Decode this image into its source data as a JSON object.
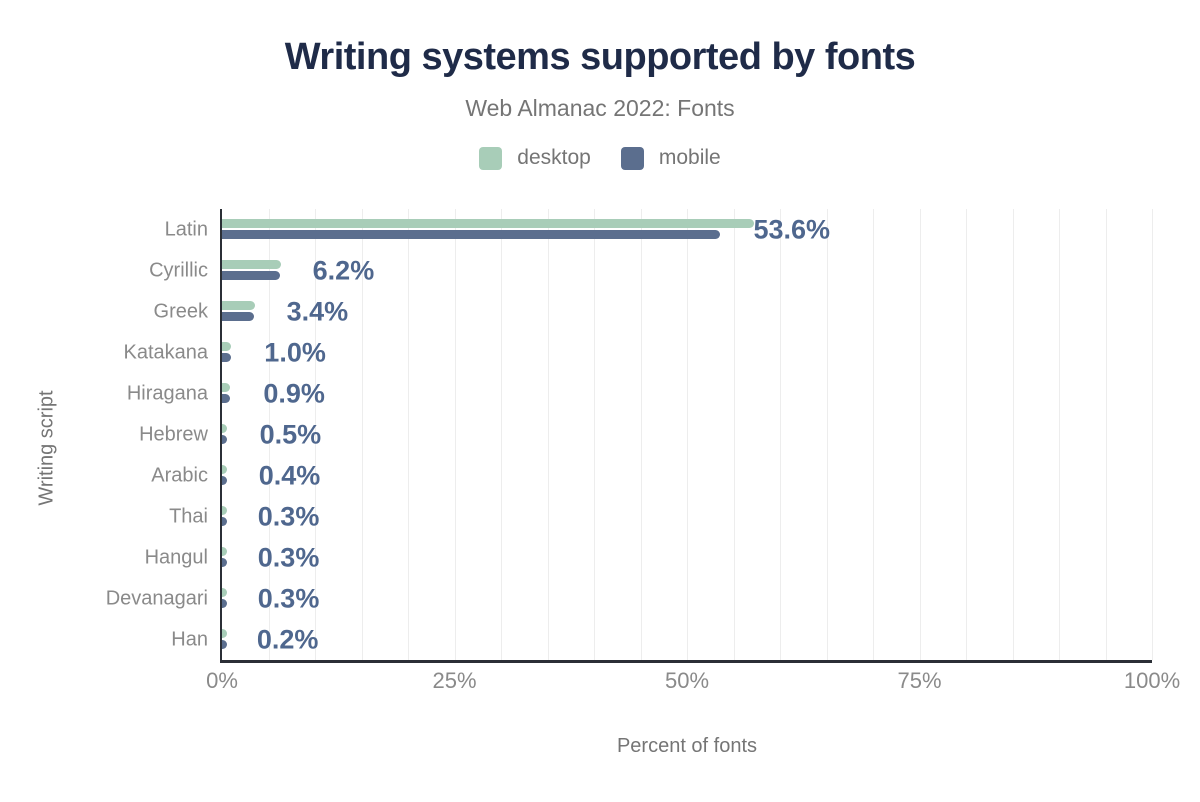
{
  "title": "Writing systems supported by fonts",
  "subtitle": "Web Almanac 2022: Fonts",
  "legend": [
    {
      "label": "desktop",
      "color": "#a8cdb8"
    },
    {
      "label": "mobile",
      "color": "#5b6e8e"
    }
  ],
  "colors": {
    "desktop_bar": "#a8cdb8",
    "mobile_bar": "#5b6e8e",
    "value_label": "#4f678e",
    "title": "#1f2b48",
    "muted_text": "#757575",
    "axis_text": "#8a8a8a",
    "gridline": "#ededed",
    "axis_line": "#2b2f36",
    "background": "#ffffff"
  },
  "chart_data": {
    "type": "bar",
    "orientation": "horizontal",
    "title": "Writing systems supported by fonts",
    "subtitle": "Web Almanac 2022: Fonts",
    "xlabel": "Percent of fonts",
    "ylabel": "Writing script",
    "xlim": [
      0,
      100
    ],
    "grid_step": 5,
    "legend_position": "top",
    "categories": [
      "Latin",
      "Cyrillic",
      "Greek",
      "Katakana",
      "Hiragana",
      "Hebrew",
      "Arabic",
      "Thai",
      "Hangul",
      "Devanagari",
      "Han"
    ],
    "series": [
      {
        "name": "desktop",
        "color": "#a8cdb8",
        "values": [
          57.2,
          6.3,
          3.5,
          1.0,
          0.9,
          0.5,
          0.4,
          0.3,
          0.3,
          0.3,
          0.2
        ]
      },
      {
        "name": "mobile",
        "color": "#5b6e8e",
        "values": [
          53.6,
          6.2,
          3.4,
          1.0,
          0.9,
          0.5,
          0.4,
          0.3,
          0.3,
          0.3,
          0.2
        ]
      }
    ],
    "labeled_series": "mobile",
    "value_labels": [
      "53.6%",
      "6.2%",
      "3.4%",
      "1.0%",
      "0.9%",
      "0.5%",
      "0.4%",
      "0.3%",
      "0.3%",
      "0.3%",
      "0.2%"
    ],
    "x_ticks": [
      {
        "value": 0,
        "label": "0%"
      },
      {
        "value": 25,
        "label": "25%"
      },
      {
        "value": 50,
        "label": "50%"
      },
      {
        "value": 75,
        "label": "75%"
      },
      {
        "value": 100,
        "label": "100%"
      }
    ]
  }
}
